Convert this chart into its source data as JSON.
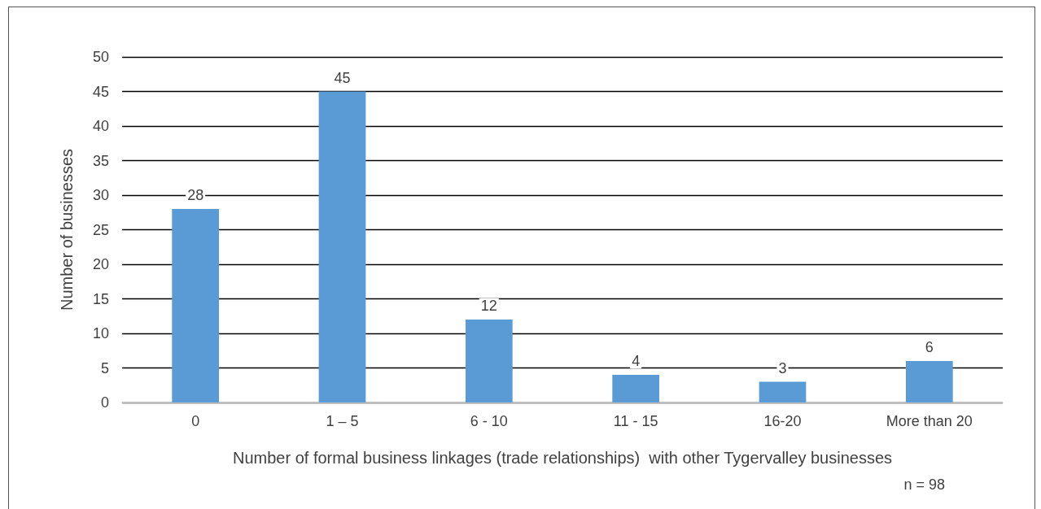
{
  "chart_data": {
    "type": "bar",
    "categories": [
      "0",
      "1 – 5",
      "6 - 10",
      "11 - 15",
      "16-20",
      "More than 20"
    ],
    "values": [
      28,
      45,
      12,
      4,
      3,
      6
    ],
    "color": "#5b9bd5",
    "ylabel": "Number of businesses",
    "xlabel": "Number of formal business linkages (trade relationships)  with other Tygervalley businesses",
    "annotations": [
      "n = 98"
    ],
    "ylim": [
      0,
      50
    ],
    "yticks": [
      0,
      5,
      10,
      15,
      20,
      25,
      30,
      35,
      40,
      45,
      50
    ],
    "grid": "y",
    "data_labels": true
  }
}
